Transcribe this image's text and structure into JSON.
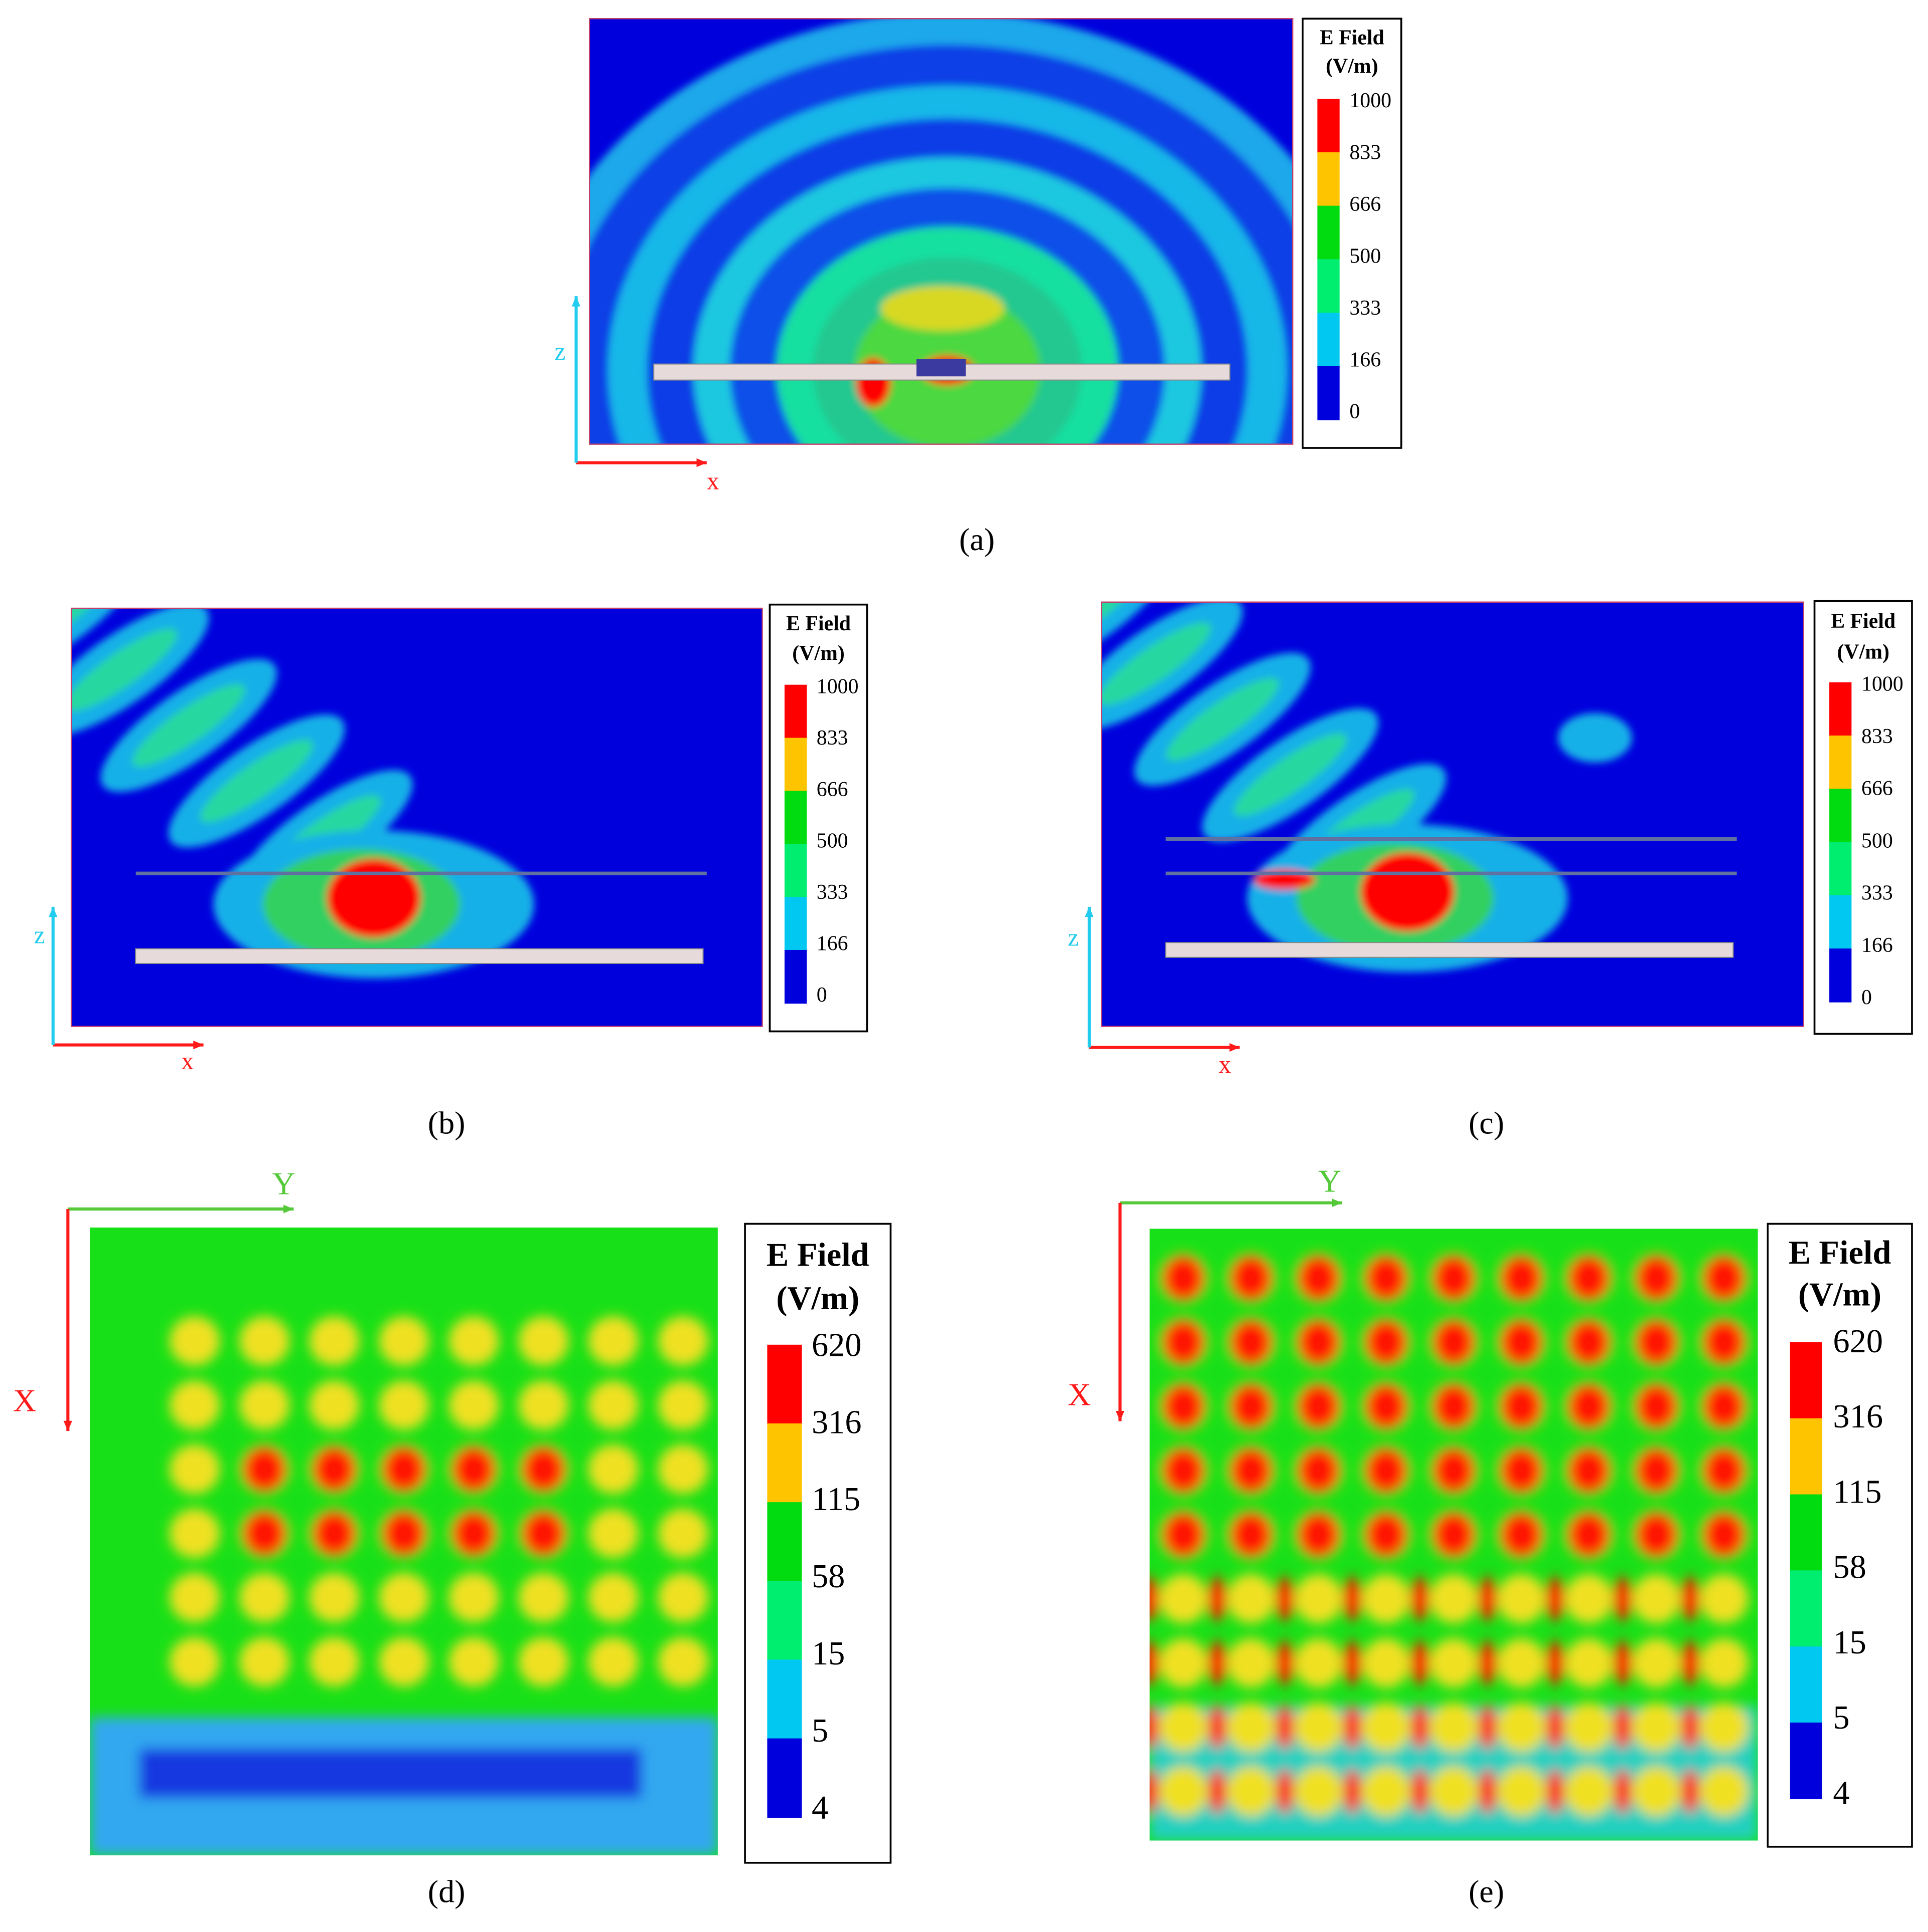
{
  "panels": [
    {
      "label": "(a)",
      "legend": {
        "title": "E Field",
        "unit": "(V/m)",
        "levels": [
          1000,
          833,
          666,
          500,
          333,
          166,
          0
        ]
      },
      "axes": {
        "horizontal": "x",
        "vertical": "z"
      }
    },
    {
      "label": "(b)",
      "legend": {
        "title": "E Field",
        "unit": "(V/m)",
        "levels": [
          1000,
          833,
          666,
          500,
          333,
          166,
          0
        ]
      },
      "axes": {
        "horizontal": "x",
        "vertical": "z"
      }
    },
    {
      "label": "(c)",
      "legend": {
        "title": "E Field",
        "unit": "(V/m)",
        "levels": [
          1000,
          833,
          666,
          500,
          333,
          166,
          0
        ]
      },
      "axes": {
        "horizontal": "x",
        "vertical": "z"
      }
    },
    {
      "label": "(d)",
      "legend": {
        "title": "E Field",
        "unit": "(V/m)",
        "levels": [
          620,
          316,
          115,
          58,
          15,
          5,
          4
        ]
      },
      "axes": {
        "horizontal": "Y",
        "vertical": "X"
      }
    },
    {
      "label": "(e)",
      "legend": {
        "title": "E Field",
        "unit": "(V/m)",
        "levels": [
          620,
          316,
          115,
          58,
          15,
          5,
          4
        ]
      },
      "axes": {
        "horizontal": "Y",
        "vertical": "X"
      }
    }
  ]
}
